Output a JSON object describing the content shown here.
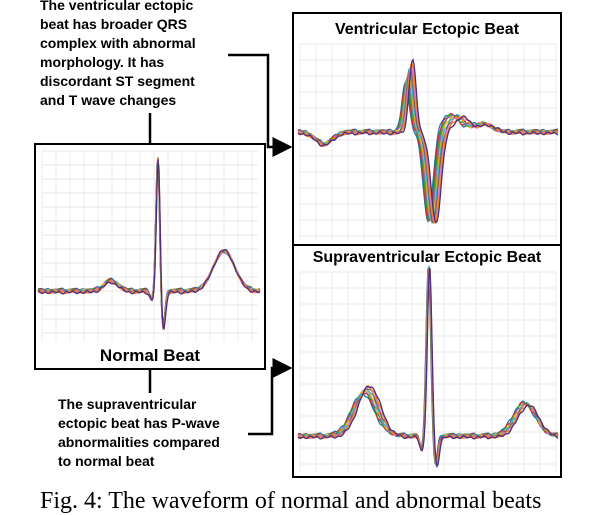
{
  "panels": {
    "normal": {
      "title": "Normal Beat"
    },
    "ventricular": {
      "title": "Ventricular Ectopic Beat"
    },
    "supraventricular": {
      "title": "Supraventricular Ectopic Beat"
    }
  },
  "notes": {
    "ventricular": [
      "The ventricular ectopic",
      "beat has broader QRS",
      "complex with abnormal",
      "morphology. It has",
      "discordant ST segment",
      "and T wave changes"
    ],
    "supraventricular": [
      "The supraventricular",
      "ectopic beat has P-wave",
      "abnormalities compared",
      "to normal beat"
    ]
  },
  "caption": "Fig. 4: The waveform of normal and abnormal beats",
  "colors": {
    "traces": [
      "#1f77b4",
      "#d62728",
      "#2ca02c",
      "#9467bd",
      "#e6b800",
      "#17becf",
      "#8c564b",
      "#e377c2",
      "#ff7f0e",
      "#4b2d83"
    ],
    "grid": "#e3e3e3"
  }
}
